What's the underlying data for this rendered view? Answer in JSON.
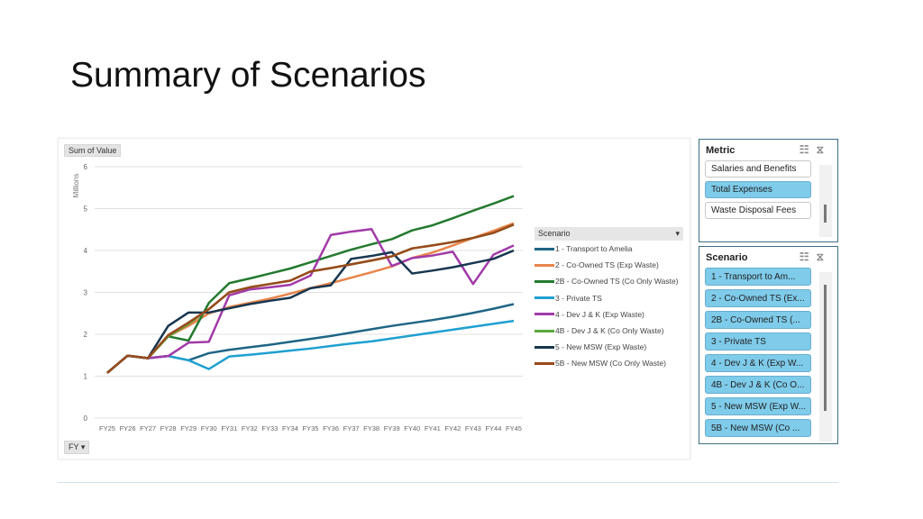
{
  "title": "Summary of Scenarios",
  "chart_buttons": {
    "value": "Sum of Value",
    "axis": "FY ▾"
  },
  "chart_data": {
    "type": "line",
    "title": "",
    "xlabel": "",
    "ylabel": "Millions",
    "ylim": [
      0,
      6
    ],
    "yticks": [
      0,
      1,
      2,
      3,
      4,
      5,
      6
    ],
    "grid": true,
    "legend_placement": "right",
    "legend_title": "Scenario",
    "categories": [
      "FY25",
      "FY26",
      "FY27",
      "FY28",
      "FY29",
      "FY30",
      "FY31",
      "FY32",
      "FY33",
      "FY34",
      "FY35",
      "FY36",
      "FY37",
      "FY38",
      "FY39",
      "FY40",
      "FY41",
      "FY42",
      "FY43",
      "FY44",
      "FY45"
    ],
    "series": [
      {
        "name": "1 - Transport to Amelia",
        "color": "#1f6585",
        "values": [
          1.08,
          1.49,
          1.43,
          1.48,
          1.38,
          1.55,
          1.63,
          1.69,
          1.75,
          1.82,
          1.89,
          1.96,
          2.04,
          2.12,
          2.2,
          2.27,
          2.34,
          2.42,
          2.51,
          2.61,
          2.72
        ]
      },
      {
        "name": "2 - Co-Owned TS (Exp Waste)",
        "color": "#e8844a",
        "values": [
          1.08,
          1.49,
          1.43,
          1.95,
          2.2,
          2.5,
          2.65,
          2.75,
          2.85,
          2.97,
          3.1,
          3.22,
          3.35,
          3.48,
          3.62,
          3.82,
          3.95,
          4.12,
          4.3,
          4.47,
          4.65
        ]
      },
      {
        "name": "2B - Co-Owned TS (Co Only Waste)",
        "color": "#247a2f",
        "values": [
          1.08,
          1.49,
          1.43,
          1.95,
          1.85,
          2.75,
          3.22,
          3.33,
          3.45,
          3.57,
          3.72,
          3.87,
          4.02,
          4.15,
          4.27,
          4.48,
          4.6,
          4.77,
          4.95,
          5.12,
          5.3
        ]
      },
      {
        "name": "3 - Private TS",
        "color": "#1fa0d0",
        "values": [
          1.08,
          1.49,
          1.43,
          1.48,
          1.38,
          1.17,
          1.47,
          1.51,
          1.56,
          1.61,
          1.66,
          1.72,
          1.78,
          1.83,
          1.9,
          1.97,
          2.04,
          2.11,
          2.18,
          2.25,
          2.32
        ]
      },
      {
        "name": "4 - Dev J & K (Exp Waste)",
        "color": "#a23aa8",
        "values": [
          1.08,
          1.49,
          1.43,
          1.48,
          1.8,
          1.82,
          2.93,
          3.07,
          3.12,
          3.18,
          3.4,
          4.37,
          4.45,
          4.51,
          3.63,
          3.82,
          3.88,
          3.97,
          3.2,
          3.9,
          4.12
        ]
      },
      {
        "name": "4B - Dev J & K (Co Only Waste)",
        "color": "#5aa83c",
        "values": [
          1.08,
          1.49,
          1.43,
          1.95,
          2.25,
          2.6,
          3.0,
          3.12,
          3.2,
          3.28,
          3.5,
          3.58,
          3.67,
          3.76,
          3.86,
          4.05,
          4.12,
          4.2,
          4.3,
          4.42,
          4.62
        ]
      },
      {
        "name": "5 - New MSW (Exp Waste)",
        "color": "#17364f",
        "values": [
          1.08,
          1.49,
          1.43,
          2.2,
          2.52,
          2.52,
          2.62,
          2.72,
          2.8,
          2.87,
          3.1,
          3.17,
          3.8,
          3.87,
          3.96,
          3.45,
          3.52,
          3.6,
          3.7,
          3.8,
          4.0
        ]
      },
      {
        "name": "5B - New MSW (Co Only Waste)",
        "color": "#9a4a1c",
        "values": [
          1.08,
          1.49,
          1.43,
          1.98,
          2.28,
          2.6,
          3.0,
          3.12,
          3.2,
          3.28,
          3.5,
          3.58,
          3.67,
          3.76,
          3.86,
          4.05,
          4.12,
          4.2,
          4.3,
          4.42,
          4.62
        ]
      }
    ]
  },
  "metric_slicer": {
    "title": "Metric",
    "items": [
      {
        "label": "Salaries and Benefits",
        "selected": false
      },
      {
        "label": "Total Expenses",
        "selected": true
      },
      {
        "label": "Waste Disposal Fees",
        "selected": false
      }
    ]
  },
  "scenario_slicer": {
    "title": "Scenario",
    "items": [
      {
        "label": "1 - Transport to Am..."
      },
      {
        "label": "2 - Co-Owned TS (Ex..."
      },
      {
        "label": "2B - Co-Owned TS (..."
      },
      {
        "label": "3 - Private TS"
      },
      {
        "label": "4 - Dev J & K (Exp W..."
      },
      {
        "label": "4B - Dev J & K (Co O..."
      },
      {
        "label": "5 - New MSW (Exp W..."
      },
      {
        "label": "5B - New MSW (Co ..."
      }
    ]
  }
}
